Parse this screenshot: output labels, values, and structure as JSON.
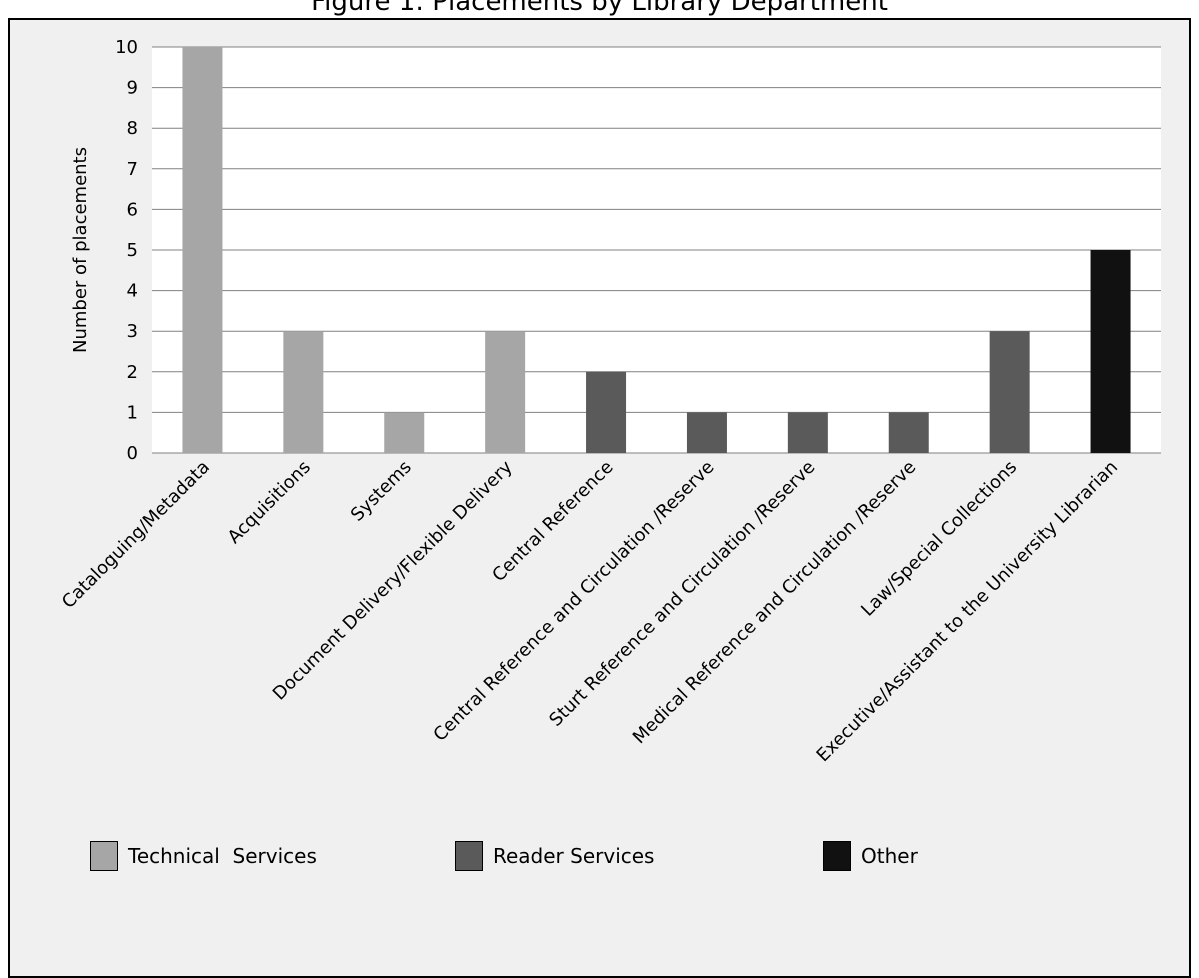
{
  "top_caption": "Figure 1: Placements by Library Department",
  "colors": {
    "technical": "#a6a6a6",
    "reader": "#5a5a5a",
    "other": "#111111",
    "grid": "#808080",
    "plot_background": "#ffffff",
    "frame_background": "#f0f0f0"
  },
  "chart_data": {
    "type": "bar",
    "ylabel": "Number of placements",
    "xlabel": "",
    "ylim": [
      0,
      10
    ],
    "yticks": [
      0,
      1,
      2,
      3,
      4,
      5,
      6,
      7,
      8,
      9,
      10
    ],
    "grid": true,
    "legend_position": "bottom",
    "categories": [
      "Cataloguing/Metadata",
      "Acquisitions",
      "Systems",
      "Document Delivery/Flexible Delivery",
      "Central Reference",
      "Central Reference and Circulation /Reserve",
      "Sturt Reference and Circulation /Reserve",
      "Medical Reference and Circulation /Reserve",
      "Law/Special Collections",
      "Executive/Assistant to the University Librarian"
    ],
    "values": [
      10,
      3,
      1,
      3,
      2,
      1,
      1,
      1,
      3,
      5
    ],
    "groups": [
      "technical",
      "technical",
      "technical",
      "technical",
      "reader",
      "reader",
      "reader",
      "reader",
      "reader",
      "other"
    ],
    "legend": [
      {
        "key": "technical",
        "label": "Technical  Services"
      },
      {
        "key": "reader",
        "label": "Reader Services"
      },
      {
        "key": "other",
        "label": "Other"
      }
    ]
  }
}
